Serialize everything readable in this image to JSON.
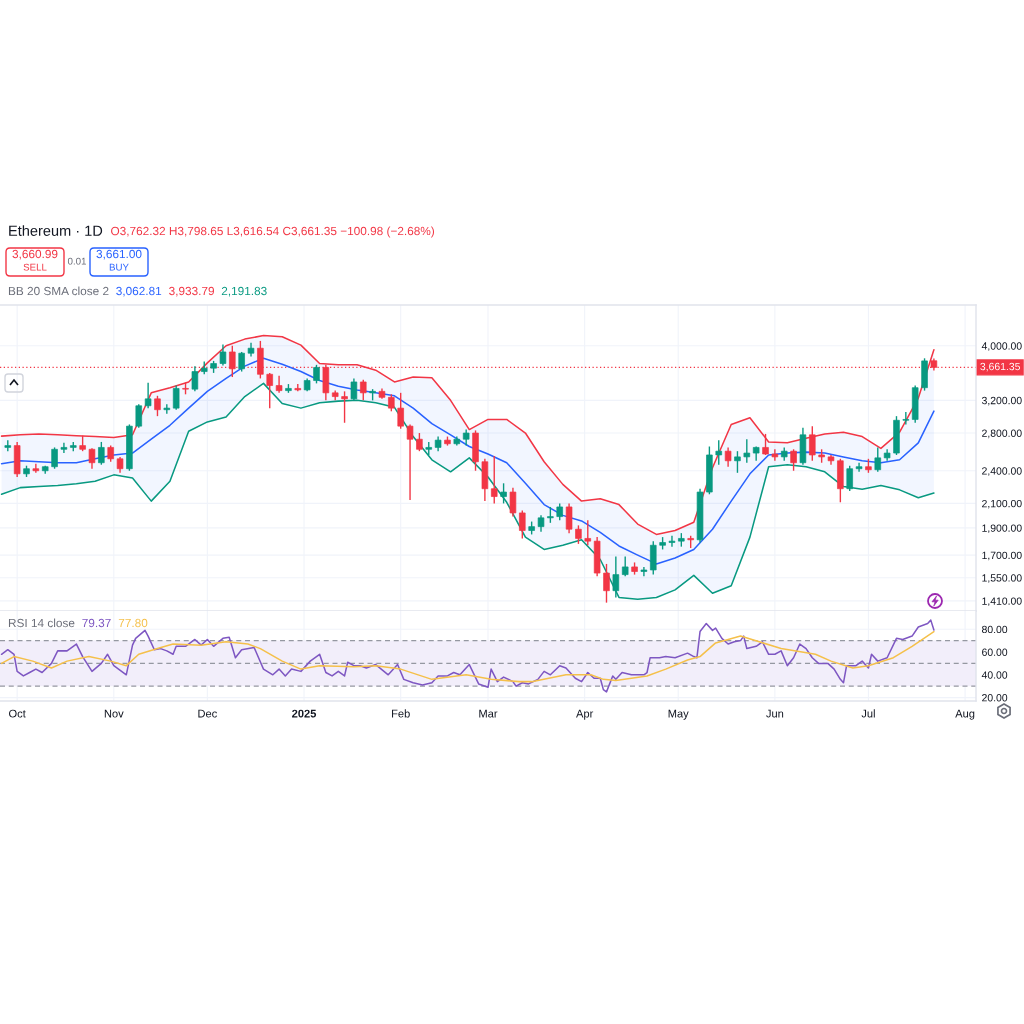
{
  "chart_data": [
    {
      "type": "candlestick",
      "title": "Ethereum · 1D",
      "annotations": [
        "O3,762.32 H3,798.65 L3,616.54 C3,661.35 −100.98 (−2.68%)",
        "3,660.99",
        "SELL",
        "0.01",
        "3,661.00",
        "BUY",
        "BB 20 SMA close 2",
        "3,062.81",
        "3,933.79",
        "2,191.83"
      ],
      "x": [
        "2024-09-28",
        "2024-10-01",
        "2024-10-04",
        "2024-10-07",
        "2024-10-10",
        "2024-10-13",
        "2024-10-16",
        "2024-10-19",
        "2024-10-22",
        "2024-10-25",
        "2024-10-28",
        "2024-10-31",
        "2024-11-03",
        "2024-11-06",
        "2024-11-09",
        "2024-11-12",
        "2024-11-15",
        "2024-11-18",
        "2024-11-21",
        "2024-11-24",
        "2024-11-27",
        "2024-11-30",
        "2024-12-03",
        "2024-12-06",
        "2024-12-09",
        "2024-12-12",
        "2024-12-15",
        "2024-12-18",
        "2024-12-21",
        "2024-12-24",
        "2024-12-27",
        "2024-12-30",
        "2025-01-02",
        "2025-01-05",
        "2025-01-08",
        "2025-01-11",
        "2025-01-14",
        "2025-01-17",
        "2025-01-20",
        "2025-01-23",
        "2025-01-26",
        "2025-01-29",
        "2025-02-01",
        "2025-02-04",
        "2025-02-07",
        "2025-02-10",
        "2025-02-13",
        "2025-02-16",
        "2025-02-19",
        "2025-02-22",
        "2025-02-25",
        "2025-02-28",
        "2025-03-03",
        "2025-03-06",
        "2025-03-09",
        "2025-03-12",
        "2025-03-15",
        "2025-03-18",
        "2025-03-21",
        "2025-03-24",
        "2025-03-27",
        "2025-03-30",
        "2025-04-02",
        "2025-04-05",
        "2025-04-08",
        "2025-04-11",
        "2025-04-14",
        "2025-04-17",
        "2025-04-20",
        "2025-04-23",
        "2025-04-26",
        "2025-04-29",
        "2025-05-02",
        "2025-05-05",
        "2025-05-08",
        "2025-05-11",
        "2025-05-14",
        "2025-05-17",
        "2025-05-20",
        "2025-05-23",
        "2025-05-26",
        "2025-05-29",
        "2025-06-01",
        "2025-06-04",
        "2025-06-07",
        "2025-06-10",
        "2025-06-13",
        "2025-06-16",
        "2025-06-19",
        "2025-06-22",
        "2025-06-25",
        "2025-06-28",
        "2025-07-01",
        "2025-07-04",
        "2025-07-07",
        "2025-07-10",
        "2025-07-13",
        "2025-07-16",
        "2025-07-19",
        "2025-07-22"
      ],
      "ohlc": [
        [
          2640,
          2720,
          2600,
          2660
        ],
        [
          2660,
          2700,
          2340,
          2370
        ],
        [
          2370,
          2450,
          2340,
          2420
        ],
        [
          2420,
          2470,
          2380,
          2400
        ],
        [
          2400,
          2450,
          2370,
          2440
        ],
        [
          2440,
          2640,
          2420,
          2620
        ],
        [
          2620,
          2690,
          2580,
          2640
        ],
        [
          2640,
          2700,
          2600,
          2660
        ],
        [
          2660,
          2770,
          2600,
          2620
        ],
        [
          2620,
          2630,
          2420,
          2480
        ],
        [
          2480,
          2700,
          2460,
          2640
        ],
        [
          2640,
          2660,
          2490,
          2520
        ],
        [
          2520,
          2540,
          2380,
          2420
        ],
        [
          2420,
          2900,
          2400,
          2880
        ],
        [
          2880,
          3150,
          2860,
          3130
        ],
        [
          3130,
          3440,
          3100,
          3220
        ],
        [
          3220,
          3260,
          3000,
          3080
        ],
        [
          3080,
          3150,
          3030,
          3100
        ],
        [
          3100,
          3400,
          3080,
          3360
        ],
        [
          3360,
          3440,
          3280,
          3350
        ],
        [
          3350,
          3680,
          3320,
          3600
        ],
        [
          3600,
          3750,
          3560,
          3650
        ],
        [
          3650,
          3760,
          3580,
          3720
        ],
        [
          3720,
          4020,
          3690,
          3900
        ],
        [
          3900,
          4000,
          3520,
          3640
        ],
        [
          3640,
          3900,
          3600,
          3880
        ],
        [
          3880,
          4050,
          3830,
          3960
        ],
        [
          3960,
          4080,
          3500,
          3560
        ],
        [
          3560,
          3580,
          3100,
          3400
        ],
        [
          3400,
          3540,
          3300,
          3330
        ],
        [
          3330,
          3420,
          3300,
          3360
        ],
        [
          3360,
          3420,
          3320,
          3340
        ],
        [
          3340,
          3500,
          3320,
          3470
        ],
        [
          3470,
          3700,
          3430,
          3660
        ],
        [
          3660,
          3700,
          3200,
          3300
        ],
        [
          3300,
          3330,
          3200,
          3250
        ],
        [
          3250,
          3320,
          2920,
          3220
        ],
        [
          3220,
          3500,
          3200,
          3450
        ],
        [
          3450,
          3480,
          3200,
          3300
        ],
        [
          3300,
          3350,
          3200,
          3320
        ],
        [
          3320,
          3360,
          3220,
          3240
        ],
        [
          3240,
          3280,
          3060,
          3100
        ],
        [
          3100,
          3300,
          2850,
          2880
        ],
        [
          2880,
          2900,
          2130,
          2730
        ],
        [
          2730,
          2800,
          2600,
          2620
        ],
        [
          2620,
          2700,
          2560,
          2640
        ],
        [
          2640,
          2760,
          2600,
          2720
        ],
        [
          2720,
          2760,
          2660,
          2680
        ],
        [
          2680,
          2760,
          2660,
          2730
        ],
        [
          2730,
          2840,
          2660,
          2800
        ],
        [
          2800,
          2830,
          2400,
          2490
        ],
        [
          2490,
          2520,
          2120,
          2230
        ],
        [
          2230,
          2550,
          2100,
          2160
        ],
        [
          2160,
          2280,
          2100,
          2200
        ],
        [
          2200,
          2240,
          1990,
          2020
        ],
        [
          2020,
          2040,
          1820,
          1880
        ],
        [
          1880,
          1950,
          1850,
          1910
        ],
        [
          1910,
          2000,
          1870,
          1980
        ],
        [
          1980,
          2070,
          1940,
          1990
        ],
        [
          1990,
          2100,
          1960,
          2070
        ],
        [
          2070,
          2100,
          1860,
          1890
        ],
        [
          1890,
          1920,
          1780,
          1820
        ],
        [
          1820,
          1960,
          1770,
          1800
        ],
        [
          1800,
          1830,
          1560,
          1580
        ],
        [
          1580,
          1640,
          1400,
          1470
        ],
        [
          1470,
          1690,
          1430,
          1570
        ],
        [
          1570,
          1690,
          1560,
          1620
        ],
        [
          1620,
          1650,
          1570,
          1590
        ],
        [
          1590,
          1620,
          1560,
          1600
        ],
        [
          1600,
          1800,
          1570,
          1770
        ],
        [
          1770,
          1830,
          1740,
          1790
        ],
        [
          1790,
          1840,
          1760,
          1800
        ],
        [
          1800,
          1860,
          1760,
          1820
        ],
        [
          1820,
          1840,
          1750,
          1810
        ],
        [
          1810,
          2230,
          1790,
          2200
        ],
        [
          2200,
          2650,
          2180,
          2560
        ],
        [
          2560,
          2720,
          2460,
          2600
        ],
        [
          2600,
          2640,
          2440,
          2500
        ],
        [
          2500,
          2600,
          2380,
          2540
        ],
        [
          2540,
          2730,
          2480,
          2580
        ],
        [
          2580,
          2650,
          2500,
          2640
        ],
        [
          2640,
          2790,
          2560,
          2570
        ],
        [
          2570,
          2620,
          2500,
          2540
        ],
        [
          2540,
          2640,
          2500,
          2600
        ],
        [
          2600,
          2620,
          2400,
          2480
        ],
        [
          2480,
          2860,
          2460,
          2780
        ],
        [
          2780,
          2880,
          2500,
          2560
        ],
        [
          2560,
          2620,
          2480,
          2540
        ],
        [
          2540,
          2560,
          2460,
          2500
        ],
        [
          2500,
          2520,
          2110,
          2230
        ],
        [
          2230,
          2450,
          2210,
          2420
        ],
        [
          2420,
          2480,
          2390,
          2440
        ],
        [
          2440,
          2520,
          2380,
          2410
        ],
        [
          2410,
          2640,
          2390,
          2530
        ],
        [
          2530,
          2620,
          2500,
          2580
        ],
        [
          2580,
          3000,
          2560,
          2950
        ],
        [
          2950,
          3050,
          2900,
          2960
        ],
        [
          2960,
          3400,
          2920,
          3370
        ],
        [
          3370,
          3800,
          3330,
          3760
        ],
        [
          3762.32,
          3798.65,
          3616.54,
          3661.35
        ]
      ],
      "colors": [
        "#089981",
        "#f23645",
        "#089981",
        "#f23645",
        "#089981",
        "#089981",
        "#089981",
        "#089981",
        "#f23645",
        "#f23645",
        "#089981",
        "#f23645",
        "#f23645",
        "#089981",
        "#089981",
        "#089981",
        "#f23645",
        "#089981",
        "#089981",
        "#f23645",
        "#089981",
        "#089981",
        "#089981",
        "#089981",
        "#f23645",
        "#089981",
        "#089981",
        "#f23645",
        "#f23645",
        "#f23645",
        "#089981",
        "#f23645",
        "#089981",
        "#089981",
        "#f23645",
        "#f23645",
        "#f23645",
        "#089981",
        "#f23645",
        "#089981",
        "#f23645",
        "#f23645",
        "#f23645",
        "#f23645",
        "#f23645",
        "#089981",
        "#089981",
        "#f23645",
        "#089981",
        "#089981",
        "#f23645",
        "#f23645",
        "#f23645",
        "#089981",
        "#f23645",
        "#f23645",
        "#089981",
        "#089981",
        "#089981",
        "#089981",
        "#f23645",
        "#f23645",
        "#f23645",
        "#f23645",
        "#f23645",
        "#089981",
        "#089981",
        "#f23645",
        "#089981",
        "#089981",
        "#089981",
        "#089981",
        "#089981",
        "#f23645",
        "#089981",
        "#089981",
        "#089981",
        "#f23645",
        "#089981",
        "#089981",
        "#089981",
        "#f23645",
        "#f23645",
        "#089981",
        "#f23645",
        "#089981",
        "#f23645",
        "#f23645",
        "#f23645",
        "#f23645",
        "#089981",
        "#089981",
        "#f23645",
        "#089981",
        "#089981",
        "#089981",
        "#089981",
        "#089981",
        "#089981",
        "#f23645"
      ],
      "series": [
        {
          "type": "line",
          "color": "#2962ff",
          "x": [
            "2024-09-26",
            "2024-10-02",
            "2024-10-08",
            "2024-10-14",
            "2024-10-20",
            "2024-10-26",
            "2024-11-01",
            "2024-11-07",
            "2024-11-13",
            "2024-11-19",
            "2024-11-25",
            "2024-12-01",
            "2024-12-07",
            "2024-12-13",
            "2024-12-19",
            "2024-12-25",
            "2024-12-31",
            "2025-01-06",
            "2025-01-12",
            "2025-01-18",
            "2025-01-24",
            "2025-01-30",
            "2025-02-05",
            "2025-02-11",
            "2025-02-17",
            "2025-02-23",
            "2025-03-01",
            "2025-03-07",
            "2025-03-13",
            "2025-03-19",
            "2025-03-25",
            "2025-03-31",
            "2025-04-06",
            "2025-04-12",
            "2025-04-18",
            "2025-04-24",
            "2025-04-30",
            "2025-05-06",
            "2025-05-12",
            "2025-05-18",
            "2025-05-24",
            "2025-05-30",
            "2025-06-05",
            "2025-06-11",
            "2025-06-17",
            "2025-06-23",
            "2025-06-29",
            "2025-07-05",
            "2025-07-11",
            "2025-07-17",
            "2025-07-22"
          ],
          "values": [
            2470,
            2500,
            2490,
            2480,
            2480,
            2520,
            2560,
            2580,
            2730,
            2890,
            3100,
            3320,
            3500,
            3680,
            3800,
            3710,
            3600,
            3470,
            3390,
            3340,
            3300,
            3260,
            3100,
            2910,
            2780,
            2650,
            2570,
            2480,
            2280,
            2090,
            2000,
            1955,
            1865,
            1765,
            1700,
            1640,
            1680,
            1740,
            1890,
            2120,
            2370,
            2560,
            2580,
            2590,
            2580,
            2540,
            2500,
            2480,
            2510,
            2690,
            3062.81
          ],
          "lower": [
            2180,
            2240,
            2250,
            2260,
            2275,
            2300,
            2360,
            2330,
            2120,
            2300,
            2820,
            2930,
            2990,
            3250,
            3430,
            3160,
            3100,
            3170,
            3190,
            3200,
            3170,
            3110,
            2760,
            2510,
            2390,
            2530,
            2340,
            2110,
            1830,
            1740,
            1770,
            1810,
            1670,
            1430,
            1420,
            1430,
            1475,
            1565,
            1455,
            1500,
            1830,
            2440,
            2460,
            2440,
            2390,
            2250,
            2225,
            2260,
            2220,
            2150,
            2191.83
          ],
          "upper": [
            2765,
            2780,
            2790,
            2780,
            2770,
            2760,
            2750,
            2780,
            3300,
            3370,
            3450,
            3730,
            4000,
            4110,
            4170,
            4150,
            4010,
            3720,
            3700,
            3700,
            3620,
            3450,
            3520,
            3510,
            3200,
            2840,
            2960,
            2960,
            2800,
            2490,
            2270,
            2120,
            2140,
            2090,
            1930,
            1850,
            1880,
            1945,
            2430,
            2900,
            2980,
            2700,
            2690,
            2740,
            2790,
            2810,
            2760,
            2630,
            2810,
            3230,
            3933.79
          ]
        },
        {
          "type": "line",
          "color": "#f23645",
          "x": [
            "2024-09-26",
            "2024-10-02",
            "2024-10-08",
            "2024-10-14",
            "2024-10-20",
            "2024-10-26",
            "2024-11-01",
            "2024-11-07",
            "2024-11-13",
            "2024-11-19",
            "2024-11-25",
            "2024-12-01",
            "2024-12-07",
            "2024-12-13",
            "2024-12-19",
            "2024-12-25",
            "2024-12-31",
            "2025-01-06",
            "2025-01-12",
            "2025-01-18",
            "2025-01-24",
            "2025-01-30",
            "2025-02-05",
            "2025-02-11",
            "2025-02-17",
            "2025-02-23",
            "2025-03-01",
            "2025-03-07",
            "2025-03-13",
            "2025-03-19",
            "2025-03-25",
            "2025-03-31",
            "2025-04-06",
            "2025-04-12",
            "2025-04-18",
            "2025-04-24",
            "2025-04-30",
            "2025-05-06",
            "2025-05-12",
            "2025-05-18",
            "2025-05-24",
            "2025-05-30",
            "2025-06-05",
            "2025-06-11",
            "2025-06-17",
            "2025-06-23",
            "2025-06-29",
            "2025-07-05",
            "2025-07-11",
            "2025-07-17",
            "2025-07-22"
          ],
          "values": [
            2765,
            2780,
            2790,
            2780,
            2770,
            2760,
            2750,
            2780,
            3300,
            3370,
            3450,
            3730,
            4000,
            4110,
            4170,
            4150,
            4010,
            3720,
            3700,
            3700,
            3620,
            3450,
            3520,
            3510,
            3200,
            2840,
            2960,
            2960,
            2800,
            2490,
            2270,
            2120,
            2140,
            2090,
            1930,
            1850,
            1880,
            1945,
            2430,
            2900,
            2980,
            2700,
            2690,
            2740,
            2790,
            2810,
            2760,
            2630,
            2810,
            3230,
            3933.79
          ]
        },
        {
          "type": "line",
          "color": "#089981",
          "x": [
            "2024-09-26",
            "2024-10-02",
            "2024-10-08",
            "2024-10-14",
            "2024-10-20",
            "2024-10-26",
            "2024-11-01",
            "2024-11-07",
            "2024-11-13",
            "2024-11-19",
            "2024-11-25",
            "2024-12-01",
            "2024-12-07",
            "2024-12-13",
            "2024-12-19",
            "2024-12-25",
            "2024-12-31",
            "2025-01-06",
            "2025-01-12",
            "2025-01-18",
            "2025-01-24",
            "2025-01-30",
            "2025-02-05",
            "2025-02-11",
            "2025-02-17",
            "2025-02-23",
            "2025-03-01",
            "2025-03-07",
            "2025-03-13",
            "2025-03-19",
            "2025-03-25",
            "2025-03-31",
            "2025-04-06",
            "2025-04-12",
            "2025-04-18",
            "2025-04-24",
            "2025-04-30",
            "2025-05-06",
            "2025-05-12",
            "2025-05-18",
            "2025-05-24",
            "2025-05-30",
            "2025-06-05",
            "2025-06-11",
            "2025-06-17",
            "2025-06-23",
            "2025-06-29",
            "2025-07-05",
            "2025-07-11",
            "2025-07-17",
            "2025-07-22"
          ],
          "values": [
            2180,
            2240,
            2250,
            2260,
            2275,
            2300,
            2360,
            2330,
            2120,
            2300,
            2820,
            2930,
            2990,
            3250,
            3430,
            3160,
            3100,
            3170,
            3190,
            3200,
            3170,
            3110,
            2760,
            2510,
            2390,
            2530,
            2340,
            2110,
            1830,
            1740,
            1770,
            1810,
            1670,
            1430,
            1420,
            1430,
            1475,
            1565,
            1455,
            1500,
            1830,
            2440,
            2460,
            2440,
            2390,
            2250,
            2225,
            2260,
            2220,
            2150,
            2191.83
          ]
        }
      ],
      "log": true,
      "ylim": [
        1353,
        4725
      ],
      "yticks": [
        {
          "value": 1410,
          "label": "1,410.00"
        },
        {
          "value": 1550,
          "label": "1,550.00"
        },
        {
          "value": 1700,
          "label": "1,700.00"
        },
        {
          "value": 1900,
          "label": "1,900.00"
        },
        {
          "value": 2100,
          "label": "2,100.00"
        },
        {
          "value": 2400,
          "label": "2,400.00"
        },
        {
          "value": 2800,
          "label": "2,800.00"
        },
        {
          "value": 3200,
          "label": "3,200.00"
        },
        {
          "value": 4000,
          "label": "4,000.00"
        }
      ],
      "xlim": [
        "2024-09-25T12:00",
        "2025-08-04T12:00"
      ],
      "xticks": [
        {
          "value": "2024-10-01",
          "label": null
        },
        {
          "value": "2024-11-01",
          "label": null
        },
        {
          "value": "2024-12-01",
          "label": null
        },
        {
          "value": "2025-01-01",
          "label": null
        },
        {
          "value": "2025-02-01",
          "label": null
        },
        {
          "value": "2025-03-01",
          "label": null
        },
        {
          "value": "2025-04-01",
          "label": null
        },
        {
          "value": "2025-05-01",
          "label": null
        },
        {
          "value": "2025-06-01",
          "label": null
        },
        {
          "value": "2025-07-01",
          "label": null
        },
        {
          "value": "2025-08-01",
          "label": null
        }
      ],
      "tick_labels": "y",
      "grid": true,
      "ref_lines": [
        {
          "axis": "y",
          "value": 3661.35,
          "label": "3,661.35",
          "color": "#f23645",
          "line_style": "dotted"
        }
      ]
    },
    {
      "type": "line",
      "annotations": [
        "RSI 14 close",
        "79.37",
        "77.80"
      ],
      "series": [
        {
          "color": "#7e57c2",
          "x": [
            "2024-09-26",
            "2024-09-28",
            "2024-09-30",
            "2024-10-01",
            "2024-10-03",
            "2024-10-05",
            "2024-10-07",
            "2024-10-09",
            "2024-10-12",
            "2024-10-14",
            "2024-10-17",
            "2024-10-20",
            "2024-10-22",
            "2024-10-25",
            "2024-10-28",
            "2024-10-30",
            "2024-11-01",
            "2024-11-05",
            "2024-11-07",
            "2024-11-08",
            "2024-11-11",
            "2024-11-12",
            "2024-11-14",
            "2024-11-16",
            "2024-11-18",
            "2024-11-20",
            "2024-11-21",
            "2024-11-24",
            "2024-11-27",
            "2024-11-29",
            "2024-12-01",
            "2024-12-03",
            "2024-12-06",
            "2024-12-08",
            "2024-12-10",
            "2024-12-12",
            "2024-12-16",
            "2024-12-19",
            "2024-12-22",
            "2024-12-24",
            "2024-12-26",
            "2024-12-28",
            "2024-12-31",
            "2025-01-03",
            "2025-01-06",
            "2025-01-08",
            "2025-01-10",
            "2025-01-12",
            "2025-01-14",
            "2025-01-15",
            "2025-01-17",
            "2025-01-19",
            "2025-01-21",
            "2025-01-24",
            "2025-01-28",
            "2025-01-31",
            "2025-02-02",
            "2025-02-05",
            "2025-02-08",
            "2025-02-11",
            "2025-02-13",
            "2025-02-16",
            "2025-02-18",
            "2025-02-20",
            "2025-02-23",
            "2025-02-26",
            "2025-03-01",
            "2025-03-02",
            "2025-03-04",
            "2025-03-06",
            "2025-03-09",
            "2025-03-10",
            "2025-03-12",
            "2025-03-14",
            "2025-03-17",
            "2025-03-19",
            "2025-03-21",
            "2025-03-24",
            "2025-03-26",
            "2025-03-29",
            "2025-03-31",
            "2025-04-02",
            "2025-04-04",
            "2025-04-06",
            "2025-04-07",
            "2025-04-08",
            "2025-04-10",
            "2025-04-11",
            "2025-04-13",
            "2025-04-16",
            "2025-04-20",
            "2025-04-21",
            "2025-04-22",
            "2025-04-25",
            "2025-04-27",
            "2025-04-30",
            "2025-05-04",
            "2025-05-06",
            "2025-05-07",
            "2025-05-08",
            "2025-05-10",
            "2025-05-12",
            "2025-05-13",
            "2025-05-15",
            "2025-05-17",
            "2025-05-19",
            "2025-05-21",
            "2025-05-22",
            "2025-05-23",
            "2025-05-26",
            "2025-05-28",
            "2025-05-30",
            "2025-06-01",
            "2025-06-03",
            "2025-06-05",
            "2025-06-07",
            "2025-06-09",
            "2025-06-11",
            "2025-06-13",
            "2025-06-15",
            "2025-06-18",
            "2025-06-20",
            "2025-06-22",
            "2025-06-23",
            "2025-06-24",
            "2025-06-27",
            "2025-06-29",
            "2025-07-01",
            "2025-07-02",
            "2025-07-04",
            "2025-07-07",
            "2025-07-10",
            "2025-07-12",
            "2025-07-15",
            "2025-07-17",
            "2025-07-20",
            "2025-07-21",
            "2025-07-22"
          ],
          "values": [
            58,
            62,
            58,
            43,
            39,
            42,
            45,
            42,
            50,
            61,
            61,
            67,
            56,
            43,
            50,
            58,
            48,
            40,
            66,
            72,
            79,
            74,
            62,
            63,
            61,
            58,
            65,
            65,
            71,
            66,
            71,
            65,
            72,
            73,
            55,
            62,
            64,
            45,
            40,
            45,
            39,
            45,
            43,
            52,
            58,
            42,
            39,
            43,
            39,
            51,
            48,
            48,
            46,
            49,
            40,
            49,
            36,
            33,
            31,
            33,
            39,
            39,
            42,
            40,
            49,
            32,
            29,
            45,
            34,
            38,
            34,
            30,
            33,
            32,
            36,
            43,
            40,
            48,
            46,
            37,
            34,
            42,
            37,
            37,
            27,
            25,
            39,
            36,
            42,
            40,
            40,
            42,
            55,
            55,
            56,
            55,
            59,
            56,
            55,
            78,
            85,
            79,
            81,
            72,
            67,
            69,
            70,
            74,
            63,
            65,
            69,
            58,
            58,
            61,
            48,
            55,
            67,
            63,
            55,
            50,
            50,
            45,
            36,
            33,
            48,
            48,
            52,
            46,
            58,
            52,
            55,
            72,
            71,
            74,
            82,
            85,
            88,
            79.37
          ]
        },
        {
          "color": "#f5c04a",
          "x": [
            "2024-09-26",
            "2024-09-30",
            "2024-10-06",
            "2024-10-12",
            "2024-10-17",
            "2024-10-24",
            "2024-10-31",
            "2024-11-05",
            "2024-11-09",
            "2024-11-15",
            "2024-11-20",
            "2024-11-29",
            "2024-12-07",
            "2024-12-14",
            "2024-12-18",
            "2024-12-25",
            "2024-12-31",
            "2025-01-06",
            "2025-01-17",
            "2025-01-24",
            "2025-02-01",
            "2025-02-11",
            "2025-02-22",
            "2025-03-02",
            "2025-03-11",
            "2025-03-15",
            "2025-03-26",
            "2025-04-03",
            "2025-04-07",
            "2025-04-11",
            "2025-04-21",
            "2025-04-27",
            "2025-05-04",
            "2025-05-08",
            "2025-05-13",
            "2025-05-21",
            "2025-05-27",
            "2025-06-03",
            "2025-06-14",
            "2025-06-19",
            "2025-06-26",
            "2025-07-01",
            "2025-07-09",
            "2025-07-15",
            "2025-07-22"
          ],
          "values": [
            50,
            56,
            52,
            46,
            52,
            56,
            52,
            48,
            58,
            63,
            67,
            66,
            69,
            67,
            63,
            52,
            45,
            48,
            47,
            48,
            45,
            36,
            40,
            36,
            34,
            34,
            40,
            40,
            36,
            35,
            39,
            45,
            53,
            56,
            68,
            74,
            69,
            63,
            58,
            52,
            46,
            48,
            55,
            65,
            77.8
          ]
        }
      ],
      "ylim": [
        17,
        96
      ],
      "yticks": [
        {
          "value": 20,
          "label": "20.00"
        },
        {
          "value": 40,
          "label": "40.00"
        },
        {
          "value": 60,
          "label": "60.00"
        },
        {
          "value": 80,
          "label": "80.00"
        }
      ],
      "xlim": [
        "2024-09-25T12:00",
        "2025-08-04T12:00"
      ],
      "xticks": [
        {
          "value": "2024-10-01",
          "label": "Oct"
        },
        {
          "value": "2024-11-01",
          "label": "Nov"
        },
        {
          "value": "2024-12-01",
          "label": "Dec"
        },
        {
          "value": "2025-01-01",
          "label": "2025"
        },
        {
          "value": "2025-02-01",
          "label": "Feb"
        },
        {
          "value": "2025-03-01",
          "label": "Mar"
        },
        {
          "value": "2025-04-01",
          "label": "Apr"
        },
        {
          "value": "2025-05-01",
          "label": "May"
        },
        {
          "value": "2025-06-01",
          "label": "Jun"
        },
        {
          "value": "2025-07-01",
          "label": "Jul"
        },
        {
          "value": "2025-08-01",
          "label": "Aug"
        }
      ],
      "grid": true,
      "ref_lines": [
        {
          "axis": "y",
          "value": 70,
          "color": "#9598a1",
          "line_style": "dashed"
        },
        {
          "axis": "y",
          "value": 50,
          "color": "#9598a1",
          "line_style": "dashed"
        },
        {
          "axis": "y",
          "value": 30,
          "color": "#9598a1",
          "line_style": "dashed"
        }
      ],
      "bands": [
        {
          "axis": "y",
          "from": 30,
          "to": 70,
          "color": "#f2eefa"
        }
      ]
    }
  ]
}
